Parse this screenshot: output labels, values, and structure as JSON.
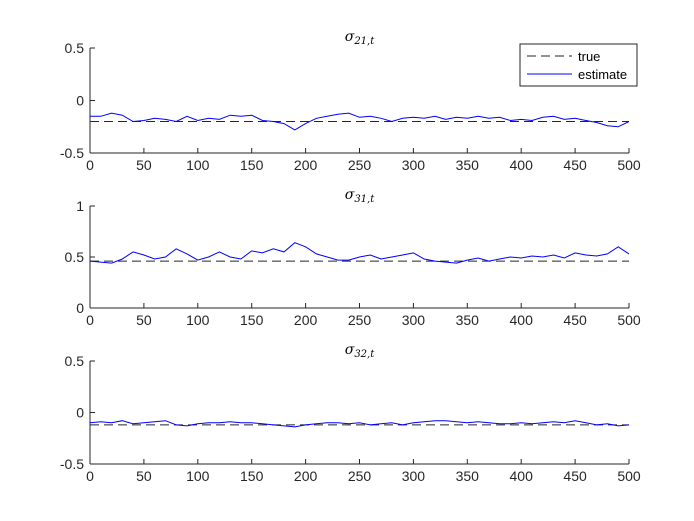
{
  "chart_data": [
    {
      "type": "line",
      "title": "σ21,t",
      "title_base": "σ",
      "title_sub": "21,t",
      "xlim": [
        0,
        500
      ],
      "ylim": [
        -0.5,
        0.5
      ],
      "x_ticks": [
        0,
        50,
        100,
        150,
        200,
        250,
        300,
        350,
        400,
        450,
        500
      ],
      "y_ticks": [
        -0.5,
        0,
        0.5
      ],
      "y_tick_labels": [
        "-0.5",
        "0",
        "0.5"
      ],
      "grid": false,
      "legend": {
        "position": "top-right",
        "entries": [
          "true",
          "estimate"
        ]
      },
      "series": [
        {
          "name": "true",
          "style": "dashed",
          "color": "#262626",
          "x": [
            0,
            500
          ],
          "values": [
            -0.2,
            -0.2
          ]
        },
        {
          "name": "estimate",
          "style": "solid",
          "color": "#0000ff",
          "x": [
            0,
            10,
            20,
            30,
            40,
            50,
            60,
            70,
            80,
            90,
            100,
            110,
            120,
            130,
            140,
            150,
            160,
            170,
            180,
            190,
            200,
            210,
            220,
            230,
            240,
            250,
            260,
            270,
            280,
            290,
            300,
            310,
            320,
            330,
            340,
            350,
            360,
            370,
            380,
            390,
            400,
            410,
            420,
            430,
            440,
            450,
            460,
            470,
            480,
            490,
            500
          ],
          "values": [
            -0.15,
            -0.15,
            -0.12,
            -0.14,
            -0.2,
            -0.19,
            -0.17,
            -0.18,
            -0.2,
            -0.15,
            -0.19,
            -0.17,
            -0.18,
            -0.14,
            -0.15,
            -0.14,
            -0.19,
            -0.2,
            -0.22,
            -0.28,
            -0.22,
            -0.17,
            -0.15,
            -0.13,
            -0.12,
            -0.16,
            -0.15,
            -0.17,
            -0.2,
            -0.17,
            -0.16,
            -0.17,
            -0.15,
            -0.18,
            -0.16,
            -0.17,
            -0.15,
            -0.17,
            -0.16,
            -0.19,
            -0.18,
            -0.19,
            -0.16,
            -0.15,
            -0.18,
            -0.17,
            -0.19,
            -0.21,
            -0.24,
            -0.25,
            -0.2
          ]
        }
      ]
    },
    {
      "type": "line",
      "title": "σ31,t",
      "title_base": "σ",
      "title_sub": "31,t",
      "xlim": [
        0,
        500
      ],
      "ylim": [
        0,
        1
      ],
      "x_ticks": [
        0,
        50,
        100,
        150,
        200,
        250,
        300,
        350,
        400,
        450,
        500
      ],
      "y_ticks": [
        0,
        0.5,
        1
      ],
      "y_tick_labels": [
        "0",
        "0.5",
        "1"
      ],
      "grid": false,
      "series": [
        {
          "name": "true",
          "style": "dashed",
          "color": "#262626",
          "x": [
            0,
            500
          ],
          "values": [
            0.46,
            0.46
          ]
        },
        {
          "name": "estimate",
          "style": "solid",
          "color": "#0000ff",
          "x": [
            0,
            10,
            20,
            30,
            40,
            50,
            60,
            70,
            80,
            90,
            100,
            110,
            120,
            130,
            140,
            150,
            160,
            170,
            180,
            190,
            200,
            210,
            220,
            230,
            240,
            250,
            260,
            270,
            280,
            290,
            300,
            310,
            320,
            330,
            340,
            350,
            360,
            370,
            380,
            390,
            400,
            410,
            420,
            430,
            440,
            450,
            460,
            470,
            480,
            490,
            500
          ],
          "values": [
            0.46,
            0.45,
            0.44,
            0.48,
            0.55,
            0.52,
            0.48,
            0.5,
            0.58,
            0.53,
            0.47,
            0.5,
            0.55,
            0.5,
            0.48,
            0.56,
            0.54,
            0.58,
            0.55,
            0.64,
            0.6,
            0.53,
            0.5,
            0.47,
            0.47,
            0.5,
            0.52,
            0.48,
            0.5,
            0.52,
            0.54,
            0.48,
            0.46,
            0.45,
            0.44,
            0.47,
            0.49,
            0.46,
            0.48,
            0.5,
            0.49,
            0.51,
            0.5,
            0.52,
            0.49,
            0.54,
            0.52,
            0.51,
            0.53,
            0.6,
            0.53
          ]
        }
      ]
    },
    {
      "type": "line",
      "title": "σ32,t",
      "title_base": "σ",
      "title_sub": "32,t",
      "xlim": [
        0,
        500
      ],
      "ylim": [
        -0.5,
        0.5
      ],
      "x_ticks": [
        0,
        50,
        100,
        150,
        200,
        250,
        300,
        350,
        400,
        450,
        500
      ],
      "y_ticks": [
        -0.5,
        0,
        0.5
      ],
      "y_tick_labels": [
        "-0.5",
        "0",
        "0.5"
      ],
      "grid": false,
      "series": [
        {
          "name": "true",
          "style": "dashed",
          "color": "#262626",
          "x": [
            0,
            500
          ],
          "values": [
            -0.12,
            -0.12
          ]
        },
        {
          "name": "estimate",
          "style": "solid",
          "color": "#0000ff",
          "x": [
            0,
            10,
            20,
            30,
            40,
            50,
            60,
            70,
            80,
            90,
            100,
            110,
            120,
            130,
            140,
            150,
            160,
            170,
            180,
            190,
            200,
            210,
            220,
            230,
            240,
            250,
            260,
            270,
            280,
            290,
            300,
            310,
            320,
            330,
            340,
            350,
            360,
            370,
            380,
            390,
            400,
            410,
            420,
            430,
            440,
            450,
            460,
            470,
            480,
            490,
            500
          ],
          "values": [
            -0.1,
            -0.09,
            -0.1,
            -0.08,
            -0.11,
            -0.1,
            -0.09,
            -0.08,
            -0.12,
            -0.13,
            -0.11,
            -0.1,
            -0.1,
            -0.09,
            -0.1,
            -0.1,
            -0.11,
            -0.12,
            -0.13,
            -0.14,
            -0.12,
            -0.11,
            -0.1,
            -0.1,
            -0.11,
            -0.1,
            -0.12,
            -0.11,
            -0.1,
            -0.12,
            -0.1,
            -0.09,
            -0.08,
            -0.08,
            -0.09,
            -0.1,
            -0.09,
            -0.1,
            -0.11,
            -0.11,
            -0.1,
            -0.11,
            -0.1,
            -0.09,
            -0.1,
            -0.08,
            -0.1,
            -0.12,
            -0.11,
            -0.13,
            -0.12
          ]
        }
      ]
    }
  ]
}
